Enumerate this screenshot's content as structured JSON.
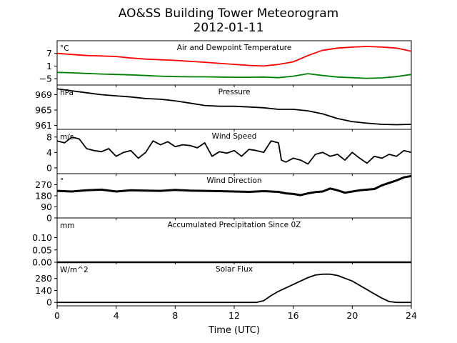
{
  "figure": {
    "title_line1": "AO&SS Building Tower Meteorogram",
    "title_line2": "2012-01-11",
    "xlabel": "Time (UTC)"
  },
  "chart_data": {
    "type": "line",
    "x_ticks": [
      0,
      4,
      8,
      12,
      16,
      20,
      24
    ],
    "x_range": [
      0,
      24
    ],
    "panels": [
      {
        "id": "temperature",
        "title": "Air and Dewpoint Temperature",
        "unit": "°C",
        "ylim": [
          -8,
          13
        ],
        "yticks": [
          -5,
          1,
          7
        ],
        "series": [
          {
            "color": "#ff0000",
            "points": [
              [
                0,
                7
              ],
              [
                1,
                6.5
              ],
              [
                2,
                6
              ],
              [
                3,
                5.8
              ],
              [
                4,
                5.5
              ],
              [
                5,
                4.8
              ],
              [
                6,
                4.3
              ],
              [
                7,
                4
              ],
              [
                8,
                3.7
              ],
              [
                9,
                3.2
              ],
              [
                10,
                2.8
              ],
              [
                11,
                2.3
              ],
              [
                12,
                1.8
              ],
              [
                13,
                1.3
              ],
              [
                14,
                1
              ],
              [
                15,
                1.8
              ],
              [
                16,
                3
              ],
              [
                17,
                6
              ],
              [
                18,
                8.5
              ],
              [
                19,
                9.5
              ],
              [
                20,
                10
              ],
              [
                21,
                10.3
              ],
              [
                22,
                10
              ],
              [
                23,
                9.5
              ],
              [
                24,
                8
              ]
            ]
          },
          {
            "color": "#008000",
            "points": [
              [
                0,
                -2
              ],
              [
                1,
                -2.2
              ],
              [
                2,
                -2.5
              ],
              [
                3,
                -2.8
              ],
              [
                4,
                -3
              ],
              [
                5,
                -3.2
              ],
              [
                6,
                -3.5
              ],
              [
                7,
                -3.8
              ],
              [
                8,
                -4
              ],
              [
                9,
                -4.1
              ],
              [
                10,
                -4.1
              ],
              [
                11,
                -4.2
              ],
              [
                12,
                -4.3
              ],
              [
                13,
                -4.3
              ],
              [
                14,
                -4.2
              ],
              [
                15,
                -4.5
              ],
              [
                16,
                -3.8
              ],
              [
                17,
                -2.6
              ],
              [
                18,
                -3.5
              ],
              [
                19,
                -4.2
              ],
              [
                20,
                -4.5
              ],
              [
                21,
                -4.8
              ],
              [
                22,
                -4.6
              ],
              [
                23,
                -4
              ],
              [
                24,
                -3
              ]
            ]
          }
        ]
      },
      {
        "id": "pressure",
        "title": "Pressure",
        "unit": "hPa",
        "ylim": [
          960,
          971.5
        ],
        "yticks": [
          961,
          965,
          969
        ],
        "series": [
          {
            "color": "#000000",
            "points": [
              [
                0,
                970.5
              ],
              [
                1,
                970
              ],
              [
                2,
                969.5
              ],
              [
                3,
                969
              ],
              [
                4,
                968.7
              ],
              [
                5,
                968.4
              ],
              [
                6,
                968
              ],
              [
                7,
                967.8
              ],
              [
                8,
                967.4
              ],
              [
                9,
                966.8
              ],
              [
                10,
                966.2
              ],
              [
                11,
                966
              ],
              [
                12,
                966
              ],
              [
                13,
                965.8
              ],
              [
                14,
                965.6
              ],
              [
                15,
                965.2
              ],
              [
                16,
                965.2
              ],
              [
                17,
                964.8
              ],
              [
                18,
                964
              ],
              [
                19,
                962.8
              ],
              [
                20,
                962
              ],
              [
                21,
                961.6
              ],
              [
                22,
                961.3
              ],
              [
                23,
                961.2
              ],
              [
                24,
                961.3
              ]
            ]
          }
        ]
      },
      {
        "id": "wind_speed",
        "title": "Wind Speed",
        "unit": "m/s",
        "ylim": [
          -1.5,
          10
        ],
        "yticks": [
          0,
          4,
          8
        ],
        "series": [
          {
            "color": "#000000",
            "points": [
              [
                0,
                7
              ],
              [
                0.5,
                6.5
              ],
              [
                1,
                8
              ],
              [
                1.5,
                7.5
              ],
              [
                2,
                5
              ],
              [
                2.5,
                4.5
              ],
              [
                3,
                4.2
              ],
              [
                3.5,
                5
              ],
              [
                4,
                3
              ],
              [
                4.5,
                4
              ],
              [
                5,
                4.5
              ],
              [
                5.5,
                2.5
              ],
              [
                6,
                4
              ],
              [
                6.5,
                7
              ],
              [
                7,
                6
              ],
              [
                7.5,
                6.8
              ],
              [
                8,
                5.5
              ],
              [
                8.5,
                6
              ],
              [
                9,
                5.8
              ],
              [
                9.5,
                5.2
              ],
              [
                10,
                6.5
              ],
              [
                10.5,
                3
              ],
              [
                11,
                4.2
              ],
              [
                11.5,
                3.8
              ],
              [
                12,
                4.5
              ],
              [
                12.5,
                3
              ],
              [
                13,
                4.8
              ],
              [
                13.5,
                4.5
              ],
              [
                14,
                4
              ],
              [
                14.5,
                7
              ],
              [
                15,
                6.5
              ],
              [
                15.2,
                2
              ],
              [
                15.5,
                1.5
              ],
              [
                16,
                2.5
              ],
              [
                16.5,
                2
              ],
              [
                17,
                1
              ],
              [
                17.5,
                3.5
              ],
              [
                18,
                4
              ],
              [
                18.5,
                3
              ],
              [
                19,
                3.5
              ],
              [
                19.5,
                2
              ],
              [
                20,
                4
              ],
              [
                20.5,
                2.5
              ],
              [
                21,
                1.2
              ],
              [
                21.5,
                3
              ],
              [
                22,
                2.5
              ],
              [
                22.5,
                3.5
              ],
              [
                23,
                3
              ],
              [
                23.5,
                4.5
              ],
              [
                24,
                4
              ]
            ]
          }
        ]
      },
      {
        "id": "wind_direction",
        "title": "Wind Direction",
        "unit": "°",
        "ylim": [
          0,
          360
        ],
        "yticks": [
          0,
          90,
          180,
          270
        ],
        "series": [
          {
            "color": "#000000",
            "points": [
              [
                0,
                220
              ],
              [
                1,
                215
              ],
              [
                2,
                225
              ],
              [
                3,
                230
              ],
              [
                4,
                215
              ],
              [
                5,
                225
              ],
              [
                6,
                222
              ],
              [
                7,
                220
              ],
              [
                8,
                228
              ],
              [
                9,
                222
              ],
              [
                10,
                220
              ],
              [
                11,
                218
              ],
              [
                12,
                215
              ],
              [
                13,
                212
              ],
              [
                14,
                218
              ],
              [
                15,
                212
              ],
              [
                15.5,
                200
              ],
              [
                16,
                195
              ],
              [
                16.5,
                185
              ],
              [
                17,
                200
              ],
              [
                17.5,
                210
              ],
              [
                18,
                215
              ],
              [
                18.5,
                240
              ],
              [
                19,
                225
              ],
              [
                19.5,
                205
              ],
              [
                20,
                215
              ],
              [
                20.5,
                225
              ],
              [
                21,
                230
              ],
              [
                21.5,
                235
              ],
              [
                22,
                265
              ],
              [
                22.5,
                285
              ],
              [
                23,
                305
              ],
              [
                23.5,
                330
              ],
              [
                24,
                340
              ]
            ]
          }
        ]
      },
      {
        "id": "precipitation",
        "title": "Accumulated Precipitation Since 0Z",
        "unit": "mm",
        "ylim": [
          0,
          0.18
        ],
        "yticks": [
          0.0,
          0.05,
          0.1
        ],
        "ytick_labels": [
          "0.00",
          "0.05",
          "0.10"
        ],
        "series": [
          {
            "color": "#000000",
            "points": [
              [
                0,
                0
              ],
              [
                24,
                0
              ]
            ]
          }
        ]
      },
      {
        "id": "solar_flux",
        "title": "Solar Flux",
        "unit": "W/m^2",
        "ylim": [
          -40,
          470
        ],
        "yticks": [
          0,
          140,
          280
        ],
        "series": [
          {
            "color": "#000000",
            "points": [
              [
                0,
                0
              ],
              [
                13.5,
                0
              ],
              [
                14,
                20
              ],
              [
                14.5,
                80
              ],
              [
                15,
                130
              ],
              [
                16,
                210
              ],
              [
                17,
                290
              ],
              [
                17.5,
                320
              ],
              [
                18,
                330
              ],
              [
                18.5,
                330
              ],
              [
                19,
                315
              ],
              [
                20,
                250
              ],
              [
                21,
                150
              ],
              [
                21.5,
                100
              ],
              [
                22,
                50
              ],
              [
                22.5,
                10
              ],
              [
                23,
                0
              ],
              [
                24,
                0
              ]
            ]
          }
        ]
      }
    ]
  }
}
